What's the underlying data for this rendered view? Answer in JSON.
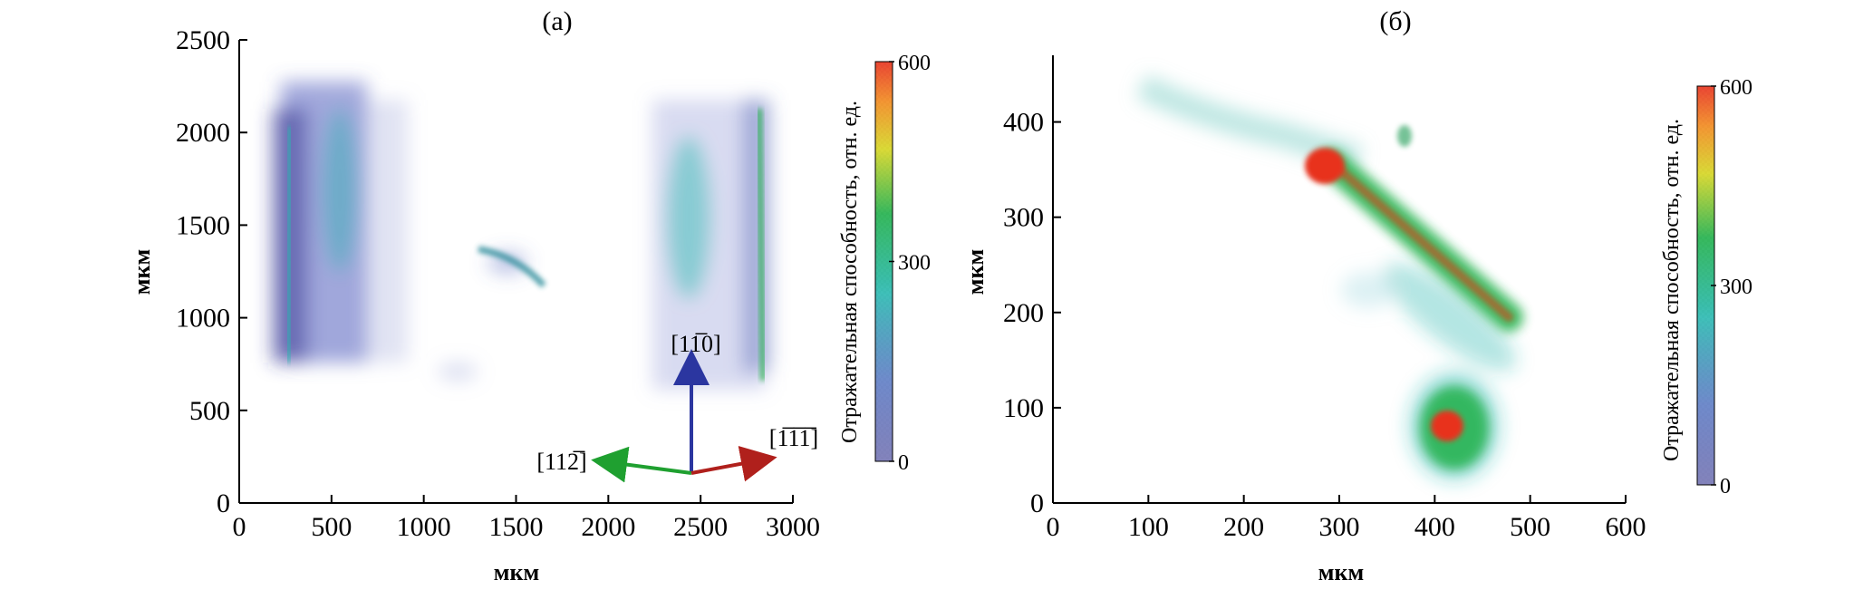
{
  "figure": {
    "arrow_labels": {
      "up": "[11̅0]",
      "left": "[112̅]",
      "right": "[1̅1̅1̅]"
    }
  },
  "chart_data": [
    {
      "type": "heatmap",
      "title": "(а)",
      "xlabel": "мкм",
      "ylabel": "мкм",
      "xlim": [
        0,
        3000
      ],
      "ylim": [
        0,
        2500
      ],
      "xticks": [
        0,
        500,
        1000,
        1500,
        2000,
        2500,
        3000
      ],
      "yticks": [
        0,
        500,
        1000,
        1500,
        2000,
        2500
      ],
      "colorbar": {
        "label": "Отражательная способность, отн. ед.",
        "min": 0,
        "max": 600,
        "ticks": [
          0,
          300,
          600
        ],
        "colors": [
          "#2c2c8c",
          "#3a5fb8",
          "#26b8b0",
          "#22b14c",
          "#d6d622",
          "#f28a1e",
          "#e8321e"
        ]
      },
      "regions": [
        {
          "x": [
            270,
            720
          ],
          "y": [
            750,
            2300
          ],
          "level": 180
        },
        {
          "x": [
            1300,
            1700
          ],
          "y": [
            1050,
            1400
          ],
          "level": 260
        },
        {
          "x": [
            2200,
            2900
          ],
          "y": [
            600,
            2250
          ],
          "level": 200
        },
        {
          "x": [
            2820,
            2880
          ],
          "y": [
            700,
            2100
          ],
          "level": 320
        }
      ]
    },
    {
      "type": "heatmap",
      "title": "(б)",
      "xlabel": "мкм",
      "ylabel": "мкм",
      "xlim": [
        0,
        600
      ],
      "ylim": [
        0,
        470
      ],
      "xticks": [
        0,
        100,
        200,
        300,
        400,
        500,
        600
      ],
      "yticks": [
        0,
        100,
        200,
        300,
        400
      ],
      "colorbar": {
        "label": "Отражательная способность, отн. ед.",
        "min": 0,
        "max": 600,
        "ticks": [
          0,
          300,
          600
        ],
        "colors": [
          "#2c2c8c",
          "#3a5fb8",
          "#26b8b0",
          "#22b14c",
          "#d6d622",
          "#f28a1e",
          "#e8321e"
        ]
      },
      "regions": [
        {
          "x": [
            280,
            490
          ],
          "y": [
            180,
            370
          ],
          "level": 550
        },
        {
          "x": [
            380,
            470
          ],
          "y": [
            30,
            140
          ],
          "level": 500
        },
        {
          "x": [
            70,
            280
          ],
          "y": [
            350,
            440
          ],
          "level": 80
        }
      ]
    }
  ]
}
